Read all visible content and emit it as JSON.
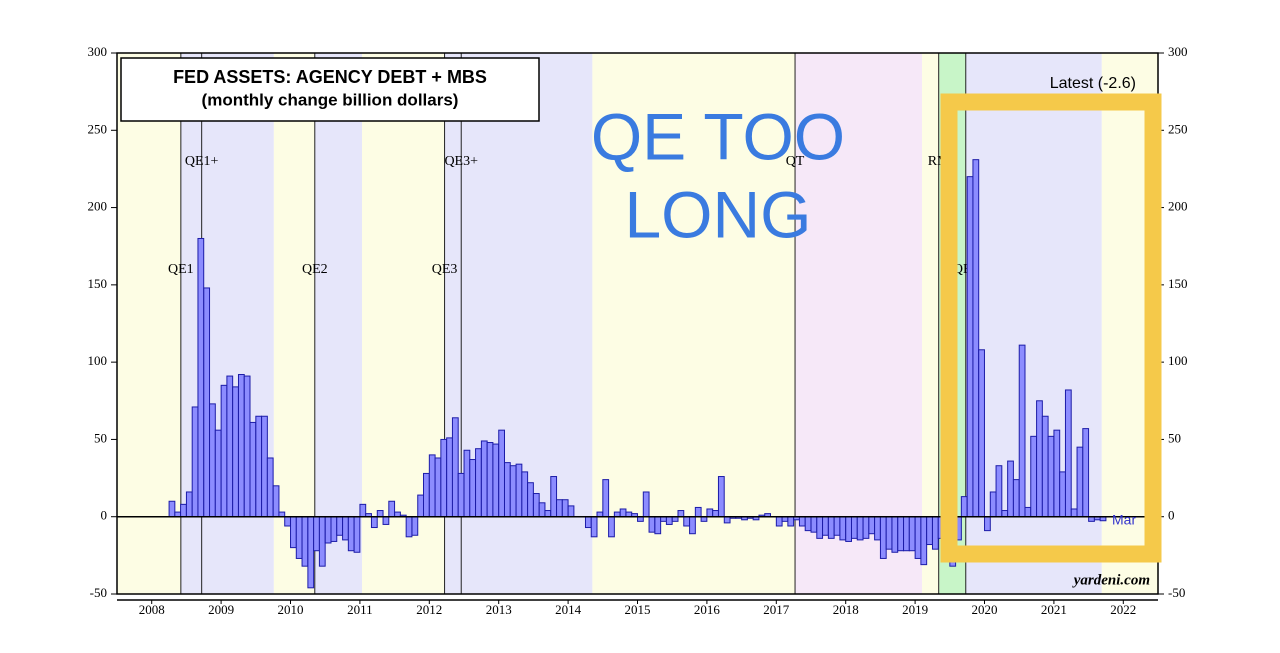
{
  "chart_data": {
    "type": "bar",
    "title": "FED ASSETS: AGENCY DEBT + MBS",
    "subtitle": "(monthly change billion dollars)",
    "annotations": {
      "latest": "Latest (-2.6)",
      "last_month": "Mar",
      "source": "yardeni.com",
      "overlay": [
        "QE TOO",
        "LONG"
      ]
    },
    "color": "#8c8cff",
    "edge_color": "#1c1ca8",
    "xlim": [
      2008,
      2023
    ],
    "xticks": [
      {
        "value": 2008.5,
        "label": "2008"
      },
      {
        "value": 2009.5,
        "label": "2009"
      },
      {
        "value": 2010.5,
        "label": "2010"
      },
      {
        "value": 2011.5,
        "label": "2011"
      },
      {
        "value": 2012.5,
        "label": "2012"
      },
      {
        "value": 2013.5,
        "label": "2013"
      },
      {
        "value": 2014.5,
        "label": "2014"
      },
      {
        "value": 2015.5,
        "label": "2015"
      },
      {
        "value": 2016.5,
        "label": "2016"
      },
      {
        "value": 2017.5,
        "label": "2017"
      },
      {
        "value": 2018.5,
        "label": "2018"
      },
      {
        "value": 2019.5,
        "label": "2019"
      },
      {
        "value": 2020.5,
        "label": "2020"
      },
      {
        "value": 2021.5,
        "label": "2021"
      },
      {
        "value": 2022.5,
        "label": "2022"
      }
    ],
    "ylim": [
      -50,
      300
    ],
    "yticks": [
      -50,
      0,
      50,
      100,
      150,
      200,
      250,
      300
    ],
    "y2lim": [
      -50,
      300
    ],
    "y2ticks": [
      -50,
      0,
      50,
      100,
      150,
      200,
      250,
      300
    ],
    "bands": [
      {
        "from": 2008,
        "to": 2008.92,
        "color": "#fdfde4"
      },
      {
        "from": 2008.92,
        "to": 2010.26,
        "color": "#e6e6fa"
      },
      {
        "from": 2010.26,
        "to": 2010.85,
        "color": "#fdfde4"
      },
      {
        "from": 2010.85,
        "to": 2011.53,
        "color": "#e6e6fa"
      },
      {
        "from": 2011.53,
        "to": 2012.72,
        "color": "#fdfde4"
      },
      {
        "from": 2012.72,
        "to": 2014.85,
        "color": "#e6e6fa"
      },
      {
        "from": 2014.85,
        "to": 2017.77,
        "color": "#fdfde4"
      },
      {
        "from": 2017.77,
        "to": 2019.6,
        "color": "#f6e8f8"
      },
      {
        "from": 2019.6,
        "to": 2019.84,
        "color": "#fdfde4"
      },
      {
        "from": 2019.84,
        "to": 2020.23,
        "color": "#c8f5c8"
      },
      {
        "from": 2020.23,
        "to": 2022.19,
        "color": "#e6e6fa"
      },
      {
        "from": 2022.19,
        "to": 2023,
        "color": "#fdfde4"
      }
    ],
    "events": [
      {
        "x": 2008.92,
        "label": "QE1"
      },
      {
        "x": 2009.22,
        "label": "QE1+"
      },
      {
        "x": 2010.85,
        "label": "QE2"
      },
      {
        "x": 2012.72,
        "label": "QE3"
      },
      {
        "x": 2012.96,
        "label": "QE3+"
      },
      {
        "x": 2017.77,
        "label": "QT"
      },
      {
        "x": 2019.84,
        "label": "RM"
      },
      {
        "x": 2020.23,
        "label": "QE4"
      }
    ],
    "x": [
      2008.792,
      2008.875,
      2008.958,
      2009.042,
      2009.125,
      2009.208,
      2009.292,
      2009.375,
      2009.458,
      2009.542,
      2009.625,
      2009.708,
      2009.792,
      2009.875,
      2009.958,
      2010.042,
      2010.125,
      2010.208,
      2010.292,
      2010.375,
      2010.458,
      2010.542,
      2010.625,
      2010.708,
      2010.792,
      2010.875,
      2010.958,
      2011.042,
      2011.125,
      2011.208,
      2011.292,
      2011.375,
      2011.458,
      2011.542,
      2011.625,
      2011.708,
      2011.792,
      2011.875,
      2011.958,
      2012.042,
      2012.125,
      2012.208,
      2012.292,
      2012.375,
      2012.458,
      2012.542,
      2012.625,
      2012.708,
      2012.792,
      2012.875,
      2012.958,
      2013.042,
      2013.125,
      2013.208,
      2013.292,
      2013.375,
      2013.458,
      2013.542,
      2013.625,
      2013.708,
      2013.792,
      2013.875,
      2013.958,
      2014.042,
      2014.125,
      2014.208,
      2014.292,
      2014.375,
      2014.458,
      2014.542,
      2014.625,
      2014.708,
      2014.792,
      2014.875,
      2014.958,
      2015.042,
      2015.125,
      2015.208,
      2015.292,
      2015.375,
      2015.458,
      2015.542,
      2015.625,
      2015.708,
      2015.792,
      2015.875,
      2015.958,
      2016.042,
      2016.125,
      2016.208,
      2016.292,
      2016.375,
      2016.458,
      2016.542,
      2016.625,
      2016.708,
      2016.792,
      2016.875,
      2016.958,
      2017.042,
      2017.125,
      2017.208,
      2017.292,
      2017.375,
      2017.458,
      2017.542,
      2017.625,
      2017.708,
      2017.792,
      2017.875,
      2017.958,
      2018.042,
      2018.125,
      2018.208,
      2018.292,
      2018.375,
      2018.458,
      2018.542,
      2018.625,
      2018.708,
      2018.792,
      2018.875,
      2018.958,
      2019.042,
      2019.125,
      2019.208,
      2019.292,
      2019.375,
      2019.458,
      2019.542,
      2019.625,
      2019.708,
      2019.792,
      2019.875,
      2019.958,
      2020.042,
      2020.125,
      2020.208,
      2020.292,
      2020.375,
      2020.458,
      2020.542,
      2020.625,
      2020.708,
      2020.792,
      2020.875,
      2020.958,
      2021.042,
      2021.125,
      2021.208,
      2021.292,
      2021.375,
      2021.458,
      2021.542,
      2021.625,
      2021.708,
      2021.792,
      2021.875,
      2021.958,
      2022.042,
      2022.125,
      2022.208
    ],
    "values": [
      10,
      3,
      8,
      16,
      71,
      180,
      148,
      73,
      56,
      85,
      91,
      84,
      92,
      91,
      61,
      65,
      65,
      38,
      20,
      3,
      -6,
      -20,
      -27,
      -32,
      -46,
      -22,
      -32,
      -17,
      -16,
      -12,
      -15,
      -22,
      -23,
      8,
      2,
      -7,
      4,
      -5,
      10,
      3,
      1,
      -13,
      -12,
      14,
      28,
      40,
      38,
      50,
      51,
      64,
      28,
      43,
      37,
      44,
      49,
      48,
      47,
      56,
      35,
      33,
      34,
      29,
      22,
      15,
      9,
      4,
      26,
      11,
      11,
      7,
      0,
      0,
      -7,
      -13,
      3,
      24,
      -13,
      3,
      5,
      3,
      2,
      -3,
      16,
      -10,
      -11,
      -3,
      -5,
      -3,
      4,
      -6,
      -11,
      6,
      -3,
      5,
      4,
      26,
      -4,
      -1,
      -1,
      -2,
      -1,
      -2,
      1,
      2,
      0,
      -6,
      -3,
      -6,
      -2,
      -6,
      -9,
      -10,
      -14,
      -12,
      -14,
      -12,
      -15,
      -16,
      -14,
      -15,
      -14,
      -11,
      -15,
      -27,
      -21,
      -23,
      -22,
      -22,
      -22,
      -27,
      -31,
      -18,
      -21,
      -14,
      -22,
      -32,
      -15,
      13,
      220,
      231,
      108,
      -9,
      16,
      33,
      4,
      36,
      24,
      111,
      6,
      52,
      75,
      65,
      52,
      56,
      29,
      82,
      5,
      45,
      57,
      -3,
      -2,
      -2.6
    ]
  }
}
